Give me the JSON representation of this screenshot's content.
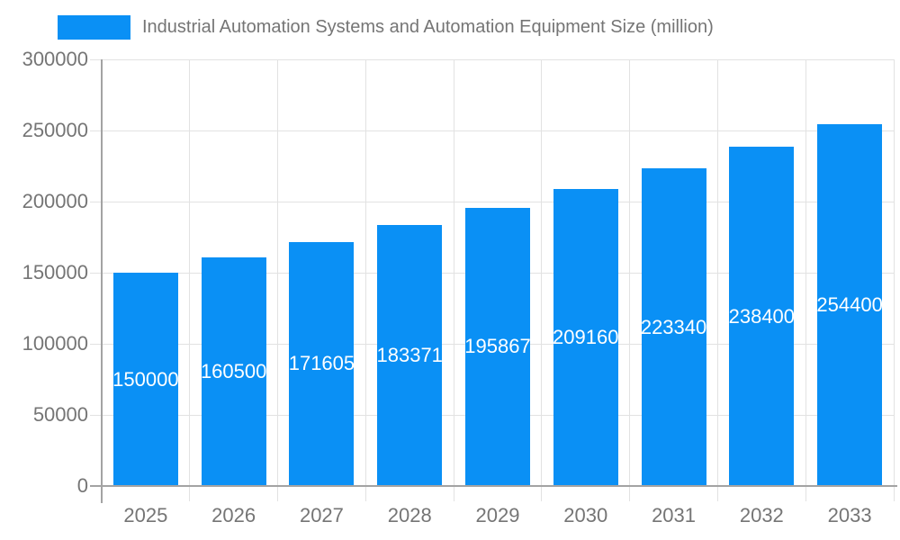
{
  "legend": {
    "label": "Industrial Automation Systems and Automation Equipment Size (million)"
  },
  "chart_data": {
    "type": "bar",
    "title": "Industrial Automation Systems and Automation Equipment Size (million)",
    "categories": [
      "2025",
      "2026",
      "2027",
      "2028",
      "2029",
      "2030",
      "2031",
      "2032",
      "2033"
    ],
    "values": [
      150000,
      160500,
      171605,
      183371,
      195867,
      209160,
      223340,
      238400,
      254400
    ],
    "xlabel": "",
    "ylabel": "",
    "ylim": [
      0,
      300000
    ],
    "y_ticks": [
      0,
      50000,
      100000,
      150000,
      200000,
      250000,
      300000
    ],
    "grid": true,
    "legend_position": "top-left",
    "colors": {
      "bar": "#0a90f5",
      "grid": "#e2e2e2",
      "axis": "#a3a3a3",
      "text": "#757575",
      "bar_label": "#ffffff",
      "background": "#ffffff"
    }
  }
}
